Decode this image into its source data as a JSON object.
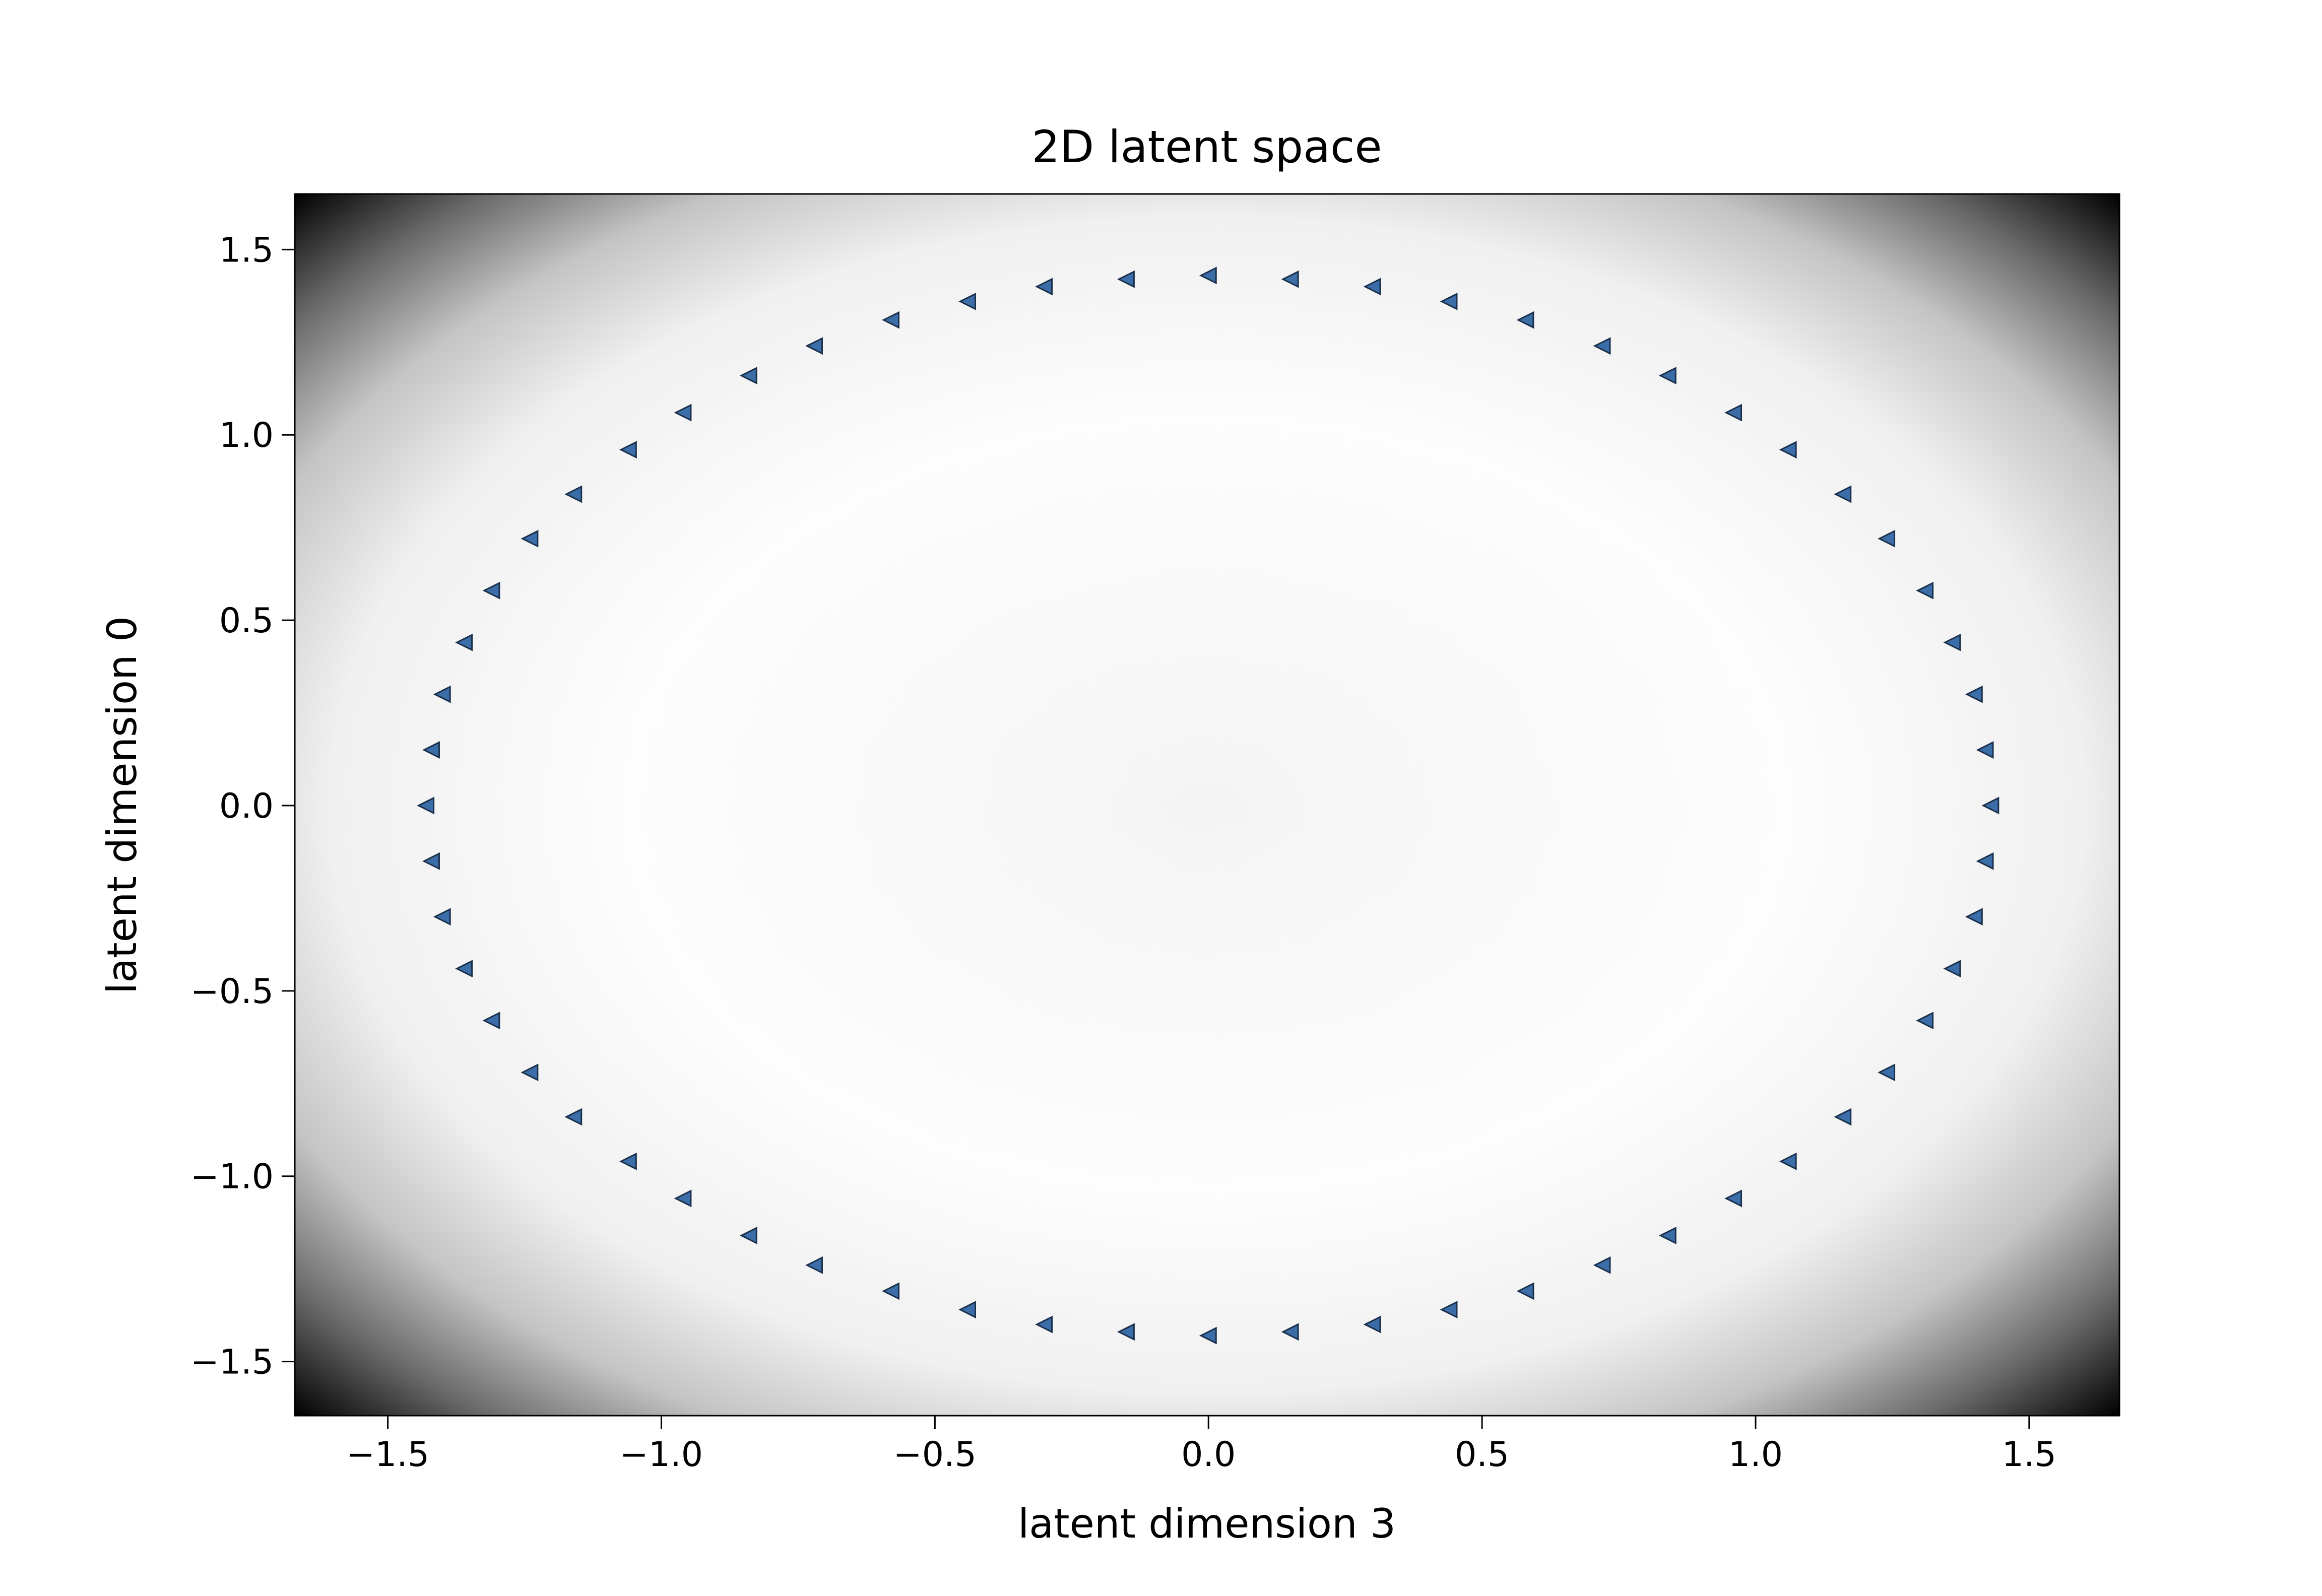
{
  "chart_data": {
    "type": "scatter",
    "title": "2D latent space",
    "x_label": "latent dimension 3",
    "y_label": "latent dimension 0",
    "marker": "triangle-left",
    "color": "#3b6ea8",
    "x": [
      1.43,
      1.42,
      1.4,
      1.36,
      1.31,
      1.24,
      1.16,
      1.06,
      0.96,
      0.84,
      0.72,
      0.58,
      0.44,
      0.3,
      0.15,
      0,
      -0.15,
      -0.3,
      -0.44,
      -0.58,
      -0.72,
      -0.84,
      -0.96,
      -1.06,
      -1.16,
      -1.24,
      -1.31,
      -1.36,
      -1.4,
      -1.42,
      -1.43,
      -1.42,
      -1.4,
      -1.36,
      -1.31,
      -1.24,
      -1.16,
      -1.06,
      -0.96,
      -0.84,
      -0.72,
      -0.58,
      -0.44,
      -0.3,
      -0.15,
      0,
      0.15,
      0.3,
      0.44,
      0.58,
      0.72,
      0.84,
      0.96,
      1.06,
      1.16,
      1.24,
      1.31,
      1.36,
      1.4,
      1.42
    ],
    "y": [
      0,
      0.15,
      0.3,
      0.44,
      0.58,
      0.72,
      0.84,
      0.96,
      1.06,
      1.16,
      1.24,
      1.31,
      1.36,
      1.4,
      1.42,
      1.43,
      1.42,
      1.4,
      1.36,
      1.31,
      1.24,
      1.16,
      1.06,
      0.96,
      0.84,
      0.72,
      0.58,
      0.44,
      0.3,
      0.15,
      0,
      -0.15,
      -0.3,
      -0.44,
      -0.58,
      -0.72,
      -0.84,
      -0.96,
      -1.06,
      -1.16,
      -1.24,
      -1.31,
      -1.36,
      -1.4,
      -1.42,
      -1.43,
      -1.42,
      -1.4,
      -1.36,
      -1.31,
      -1.24,
      -1.16,
      -1.06,
      -0.96,
      -0.84,
      -0.72,
      -0.58,
      -0.44,
      -0.3,
      -0.15
    ],
    "xlim": [
      -1.67,
      1.665
    ],
    "ylim": [
      -1.646,
      1.65
    ],
    "xticks": [
      {
        "value": -1.5,
        "label": "−1.5"
      },
      {
        "value": -1.0,
        "label": "−1.0"
      },
      {
        "value": -0.5,
        "label": "−0.5"
      },
      {
        "value": 0,
        "label": "0.0"
      },
      0.5,
      {
        "value": 1.0,
        "label": "1.0"
      },
      1.5
    ],
    "yticks": [
      {
        "value": -1.5,
        "label": "−1.5"
      },
      {
        "value": -1.0,
        "label": "−1.0"
      },
      {
        "value": -0.5,
        "label": "−0.5"
      },
      {
        "value": 0,
        "label": "0.0"
      },
      0.5,
      {
        "value": 1.0,
        "label": "1.0"
      },
      1.5
    ]
  }
}
